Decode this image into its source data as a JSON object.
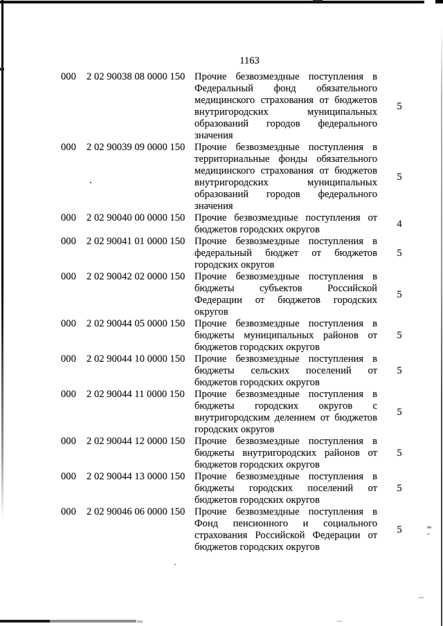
{
  "page": {
    "number": "1163"
  },
  "colors": {
    "text": "#1a1a1a",
    "background": "#ffffff"
  },
  "table": {
    "rows": [
      {
        "admin": "000",
        "code": "2 02 90038 08 0000 150",
        "description": "Прочие безвозмездные поступления в Федеральный фонд обязательного медицинского страхования от бюджетов внутригородских муниципальных образований городов федерального значения",
        "value": "5"
      },
      {
        "admin": "000",
        "code": "2 02 90039 09 0000 150",
        "description": "Прочие безвозмездные поступления в территориальные фонды обязательного медицинского страхования от бюджетов внутригородских муниципальных образований городов федерального значения",
        "value": "5"
      },
      {
        "admin": "000",
        "code": "2 02 90040 00 0000 150",
        "description": "Прочие безвозмездные поступления от бюджетов городских округов",
        "value": "4"
      },
      {
        "admin": "000",
        "code": "2 02 90041 01 0000 150",
        "description": "Прочие безвозмездные поступления в федеральный бюджет от бюджетов городских округов",
        "value": "5"
      },
      {
        "admin": "000",
        "code": "2 02 90042 02 0000 150",
        "description": "Прочие безвозмездные поступления в бюджеты субъектов Российской Федерации от бюджетов городских округов",
        "value": "5"
      },
      {
        "admin": "000",
        "code": "2 02 90044 05 0000 150",
        "description": "Прочие безвозмездные поступления в бюджеты муниципальных районов от бюджетов городских округов",
        "value": "5"
      },
      {
        "admin": "000",
        "code": "2 02 90044 10 0000 150",
        "description": "Прочие безвозмездные поступления в бюджеты сельских поселений от бюджетов городских округов",
        "value": "5"
      },
      {
        "admin": "000",
        "code": "2 02 90044 11 0000 150",
        "description": "Прочие безвозмездные поступления в бюджеты городских округов с внутригородским делением от бюджетов городских округов",
        "value": "5"
      },
      {
        "admin": "000",
        "code": "2 02 90044 12 0000 150",
        "description": "Прочие безвозмездные поступления в бюджеты внутригородских районов от бюджетов городских округов",
        "value": "5"
      },
      {
        "admin": "000",
        "code": "2 02 90044 13 0000 150",
        "description": "Прочие безвозмездные поступления в бюджеты городских поселений от бюджетов городских округов",
        "value": "5"
      },
      {
        "admin": "000",
        "code": "2 02 90046 06 0000 150",
        "description": "Прочие безвозмездные поступления в Фонд пенсионного и социального страхования Российской Федерации от бюджетов городских округов",
        "value": "5"
      }
    ]
  }
}
